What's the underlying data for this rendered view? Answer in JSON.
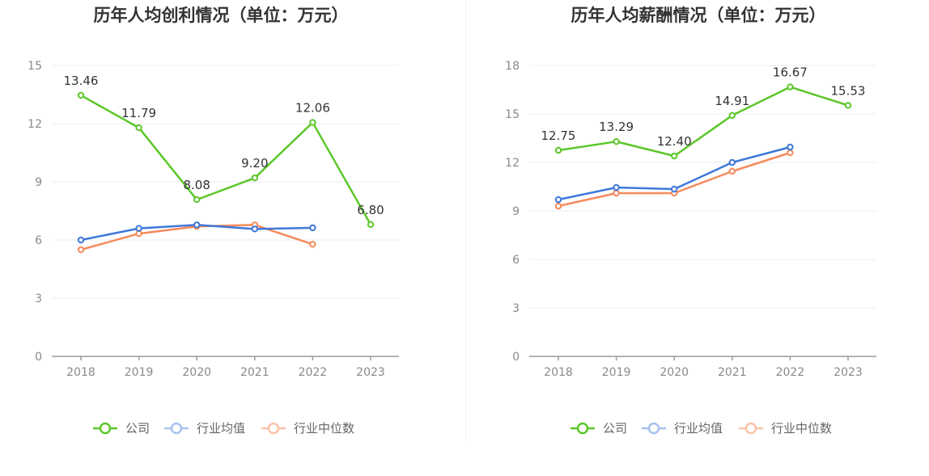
{
  "chart_data": [
    {
      "type": "line",
      "title": "历年人均创利情况（单位：万元）",
      "categories": [
        "2018",
        "2019",
        "2020",
        "2021",
        "2022",
        "2023"
      ],
      "ylim": [
        0,
        15
      ],
      "yticks": [
        0,
        3,
        6,
        9,
        12,
        15
      ],
      "series": [
        {
          "name": "公司",
          "color": "#5cc72a",
          "values": [
            13.46,
            11.79,
            8.08,
            9.2,
            12.06,
            6.8
          ],
          "labels": [
            "13.46",
            "11.79",
            "8.08",
            "9.20",
            "12.06",
            "6.80"
          ]
        },
        {
          "name": "行业均值",
          "color": "#3f78d9",
          "values": [
            6.0,
            6.6,
            6.78,
            6.57,
            6.63,
            null
          ]
        },
        {
          "name": "行业中位数",
          "color": "#f58a5c",
          "values": [
            5.5,
            6.33,
            6.7,
            6.78,
            5.78,
            null
          ]
        }
      ]
    },
    {
      "type": "line",
      "title": "历年人均薪酬情况（单位：万元）",
      "categories": [
        "2018",
        "2019",
        "2020",
        "2021",
        "2022",
        "2023"
      ],
      "ylim": [
        0,
        18
      ],
      "yticks": [
        0,
        3,
        6,
        9,
        12,
        15,
        18
      ],
      "series": [
        {
          "name": "公司",
          "color": "#5cc72a",
          "values": [
            12.75,
            13.29,
            12.4,
            14.91,
            16.67,
            15.53
          ],
          "labels": [
            "12.75",
            "13.29",
            "12.40",
            "14.91",
            "16.67",
            "15.53"
          ]
        },
        {
          "name": "行业均值",
          "color": "#3f78d9",
          "values": [
            9.7,
            10.45,
            10.35,
            12.0,
            12.95,
            null
          ]
        },
        {
          "name": "行业中位数",
          "color": "#f58a5c",
          "values": [
            9.3,
            10.1,
            10.1,
            11.45,
            12.6,
            null
          ]
        }
      ]
    }
  ]
}
